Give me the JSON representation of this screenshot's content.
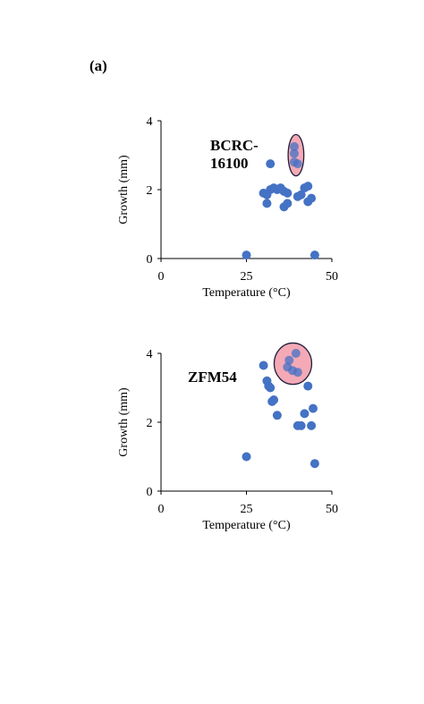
{
  "panel_label": "(a)",
  "colors": {
    "point": "#4472C4",
    "highlight_fill": "#F4A9B6",
    "highlight_stroke": "#1F1F3A",
    "axis": "#000000"
  },
  "chart_data": [
    {
      "type": "scatter",
      "title": "",
      "annotation": "BCRC-\n16100",
      "xlabel": "Temperature (°C)",
      "ylabel": "Growth (mm)",
      "xlim": [
        0,
        50
      ],
      "ylim": [
        0,
        4
      ],
      "xticks": [
        0,
        25,
        50
      ],
      "yticks": [
        0,
        2,
        4
      ],
      "grid": false,
      "points": [
        {
          "x": 25,
          "y": 0.1
        },
        {
          "x": 45,
          "y": 0.1
        },
        {
          "x": 32,
          "y": 2.75
        },
        {
          "x": 30,
          "y": 1.9
        },
        {
          "x": 31,
          "y": 1.85
        },
        {
          "x": 32,
          "y": 2.0
        },
        {
          "x": 33,
          "y": 2.05
        },
        {
          "x": 34,
          "y": 2.0
        },
        {
          "x": 35,
          "y": 2.05
        },
        {
          "x": 36,
          "y": 1.95
        },
        {
          "x": 37,
          "y": 1.9
        },
        {
          "x": 31,
          "y": 1.6
        },
        {
          "x": 36,
          "y": 1.5
        },
        {
          "x": 37,
          "y": 1.6
        },
        {
          "x": 40,
          "y": 1.8
        },
        {
          "x": 41,
          "y": 1.85
        },
        {
          "x": 42,
          "y": 2.05
        },
        {
          "x": 43,
          "y": 2.1
        },
        {
          "x": 44,
          "y": 1.75
        },
        {
          "x": 43,
          "y": 1.65
        }
      ],
      "highlighted_points": [
        {
          "x": 39,
          "y": 3.25
        },
        {
          "x": 39,
          "y": 3.05
        },
        {
          "x": 39,
          "y": 2.8
        },
        {
          "x": 40,
          "y": 2.75
        }
      ],
      "highlight_ellipse": {
        "cx": 39.5,
        "cy": 3.0,
        "rx": 2.3,
        "ry": 0.6
      }
    },
    {
      "type": "scatter",
      "title": "",
      "annotation": "ZFM54",
      "xlabel": "Temperature (°C)",
      "ylabel": "Growth (mm)",
      "xlim": [
        0,
        50
      ],
      "ylim": [
        0,
        4
      ],
      "xticks": [
        0,
        25,
        50
      ],
      "yticks": [
        0,
        2,
        4
      ],
      "grid": false,
      "points": [
        {
          "x": 25,
          "y": 1.0
        },
        {
          "x": 30,
          "y": 3.65
        },
        {
          "x": 31,
          "y": 3.2
        },
        {
          "x": 31.5,
          "y": 3.05
        },
        {
          "x": 32,
          "y": 3.0
        },
        {
          "x": 32.5,
          "y": 2.6
        },
        {
          "x": 33,
          "y": 2.65
        },
        {
          "x": 34,
          "y": 2.2
        },
        {
          "x": 40,
          "y": 1.9
        },
        {
          "x": 41,
          "y": 1.9
        },
        {
          "x": 42,
          "y": 2.25
        },
        {
          "x": 43,
          "y": 3.05
        },
        {
          "x": 44,
          "y": 1.9
        },
        {
          "x": 44.5,
          "y": 2.4
        },
        {
          "x": 45,
          "y": 0.8
        }
      ],
      "highlighted_points": [
        {
          "x": 37,
          "y": 3.6
        },
        {
          "x": 37.5,
          "y": 3.8
        },
        {
          "x": 38.5,
          "y": 3.5
        },
        {
          "x": 39.5,
          "y": 4.0
        },
        {
          "x": 40,
          "y": 3.45
        }
      ],
      "highlight_ellipse": {
        "cx": 38.6,
        "cy": 3.7,
        "rx": 5.5,
        "ry": 0.6
      }
    }
  ]
}
